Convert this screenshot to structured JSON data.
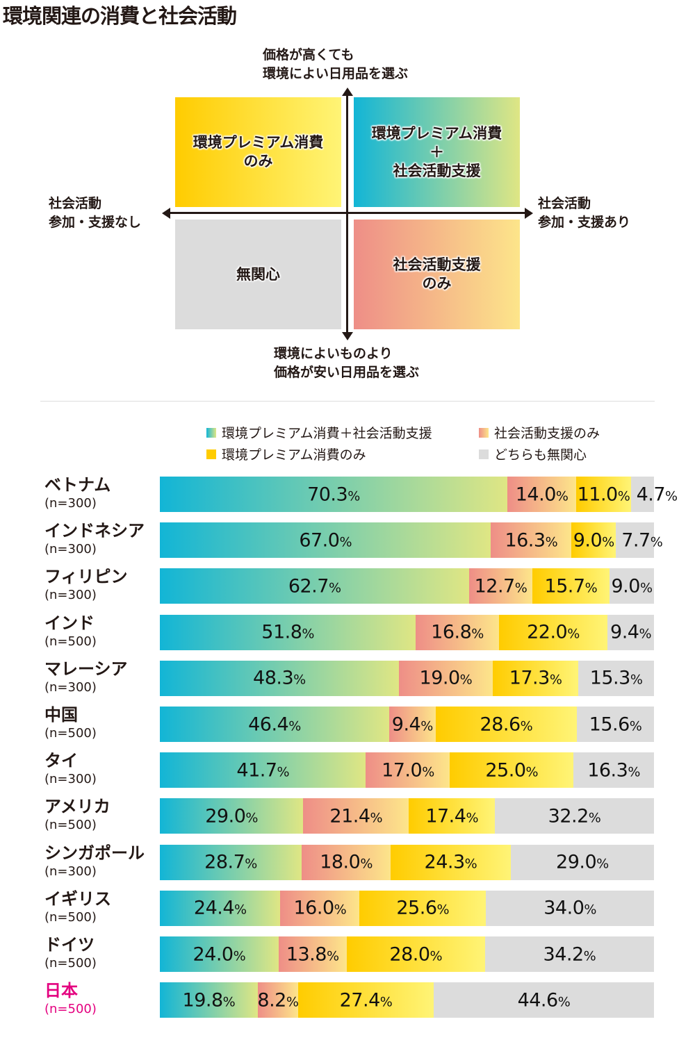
{
  "title": "環境関連の消費と社会活動",
  "matrix": {
    "top_label": "価格が高くても\n環境によい日用品を選ぶ",
    "bottom_label": "環境によいものより\n価格が安い日用品を選ぶ",
    "left_label": "社会活動\n参加・支援なし",
    "right_label": "社会活動\n参加・支援あり",
    "q_premium_only": "環境プレミアム消費\nのみ",
    "q_both": "環境プレミアム消費\n＋\n社会活動支援",
    "q_none": "無関心",
    "q_social_only": "社会活動支援\nのみ"
  },
  "colors": {
    "both": [
      "#12b5d6",
      "#dfe684"
    ],
    "social_only": [
      "#ee8e87",
      "#fde58a"
    ],
    "premium_only": [
      "#ffcc00",
      "#fff476"
    ],
    "none": "#dcdcdc",
    "japan_label": "#e4007f"
  },
  "chart_data": {
    "type": "bar",
    "orientation": "horizontal-stacked-100",
    "legend": [
      "環境プレミアム消費＋社会活動支援",
      "社会活動支援のみ",
      "環境プレミアム消費のみ",
      "どちらも無関心"
    ],
    "legend_placement": "top",
    "categories": [
      "ベトナム",
      "インドネシア",
      "フィリピン",
      "インド",
      "マレーシア",
      "中国",
      "タイ",
      "アメリカ",
      "シンガポール",
      "イギリス",
      "ドイツ",
      "日本"
    ],
    "sample_sizes": [
      "(n=300)",
      "(n=300)",
      "(n=300)",
      "(n=500)",
      "(n=300)",
      "(n=500)",
      "(n=300)",
      "(n=500)",
      "(n=300)",
      "(n=500)",
      "(n=500)",
      "(n=500)"
    ],
    "series": [
      {
        "name": "環境プレミアム消費＋社会活動支援",
        "values": [
          70.3,
          67.0,
          62.7,
          51.8,
          48.3,
          46.4,
          41.7,
          29.0,
          28.7,
          24.4,
          24.0,
          19.8
        ]
      },
      {
        "name": "社会活動支援のみ",
        "values": [
          14.0,
          16.3,
          12.7,
          16.8,
          19.0,
          9.4,
          17.0,
          21.4,
          18.0,
          16.0,
          13.8,
          8.2
        ]
      },
      {
        "name": "環境プレミアム消費のみ",
        "values": [
          11.0,
          9.0,
          15.7,
          22.0,
          17.3,
          28.6,
          25.0,
          17.4,
          24.3,
          25.6,
          28.0,
          27.4
        ]
      },
      {
        "name": "どちらも無関心",
        "values": [
          4.7,
          7.7,
          9.0,
          9.4,
          15.3,
          15.6,
          16.3,
          32.2,
          29.0,
          34.0,
          34.2,
          44.6
        ]
      }
    ],
    "unit": "%",
    "xlim": [
      0,
      100
    ]
  }
}
